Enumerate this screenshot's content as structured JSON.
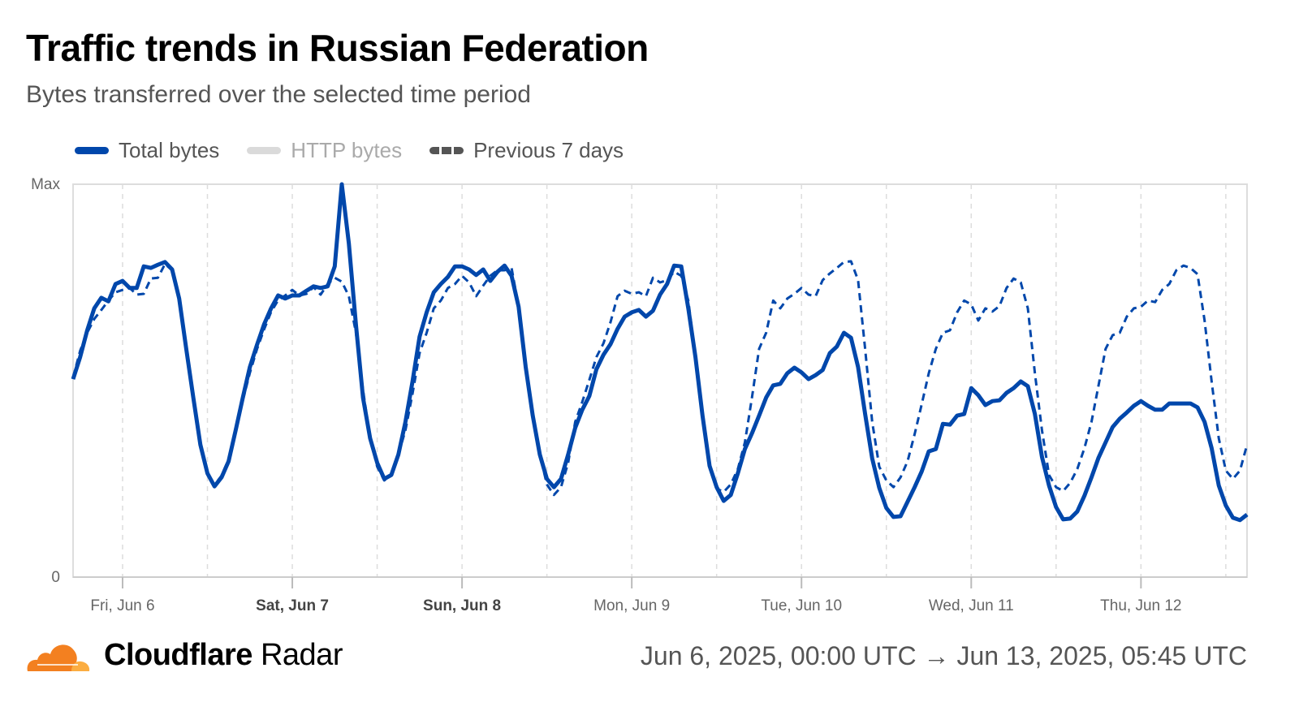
{
  "header": {
    "title": "Traffic trends in Russian Federation",
    "subtitle": "Bytes transferred over the selected time period"
  },
  "legend": [
    {
      "label": "Total bytes",
      "color": "#0047AB",
      "active": true
    },
    {
      "label": "HTTP bytes",
      "color": "#DADADA",
      "active": false
    },
    {
      "label": "Previous 7 days",
      "color": "#555555",
      "active": true
    }
  ],
  "footer": {
    "brand_bold": "Cloudflare",
    "brand_light": "Radar",
    "date_range": "Jun 6, 2025, 00:00 UTC → Jun 13, 2025, 05:45 UTC"
  },
  "chart_data": {
    "type": "line",
    "title": "Traffic trends in Russian Federation",
    "xlabel": "",
    "ylabel": "",
    "x_unit": "hours from chart start",
    "xlim": [
      0,
      166
    ],
    "ylim": [
      0,
      100
    ],
    "y_ticks": [
      {
        "value": 0,
        "label": "0"
      },
      {
        "value": 100,
        "label": "Max"
      }
    ],
    "x_ticks": [
      {
        "hour": 7,
        "label": "Fri, Jun 6",
        "bold": false
      },
      {
        "hour": 31,
        "label": "Sat, Jun 7",
        "bold": true
      },
      {
        "hour": 55,
        "label": "Sun, Jun 8",
        "bold": true
      },
      {
        "hour": 79,
        "label": "Mon, Jun 9",
        "bold": false
      },
      {
        "hour": 103,
        "label": "Tue, Jun 10",
        "bold": false
      },
      {
        "hour": 127,
        "label": "Wed, Jun 11",
        "bold": false
      },
      {
        "hour": 151,
        "label": "Thu, Jun 12",
        "bold": false
      }
    ],
    "grid": true,
    "legend_position": "top-left",
    "series": [
      {
        "name": "Total bytes",
        "style": "solid",
        "color": "#0047AB",
        "values": [
          50.4,
          56.0,
          62.8,
          68.4,
          71.1,
          70.2,
          74.6,
          75.4,
          73.6,
          73.6,
          79.1,
          78.7,
          79.5,
          80.2,
          78.3,
          70.9,
          58.1,
          45.7,
          33.7,
          26.4,
          23.1,
          25.4,
          29.5,
          37.4,
          45.7,
          53.5,
          59.1,
          64.3,
          68.4,
          71.7,
          70.9,
          71.7,
          71.7,
          72.9,
          74.0,
          73.6,
          74.0,
          79.1,
          100,
          84.9,
          64.3,
          45.7,
          35.3,
          29.1,
          25.0,
          26.0,
          31.2,
          39.5,
          49.8,
          61.2,
          67.4,
          72.5,
          74.6,
          76.4,
          79.1,
          79.1,
          78.3,
          76.9,
          78.3,
          75.4,
          77.7,
          79.3,
          76.7,
          68.8,
          53.5,
          41.1,
          31.2,
          25.0,
          22.9,
          25.0,
          31.2,
          38.0,
          42.6,
          46.1,
          52.9,
          56.6,
          59.3,
          63.2,
          66.3,
          67.4,
          68.0,
          66.3,
          67.8,
          71.9,
          74.6,
          79.3,
          79.1,
          68.4,
          56.0,
          41.1,
          28.3,
          22.9,
          19.4,
          20.9,
          26.4,
          32.6,
          36.6,
          41.1,
          45.7,
          48.8,
          49.2,
          51.9,
          53.3,
          52.1,
          50.4,
          51.4,
          52.7,
          57.0,
          58.7,
          62.2,
          60.9,
          53.5,
          41.5,
          30.2,
          22.7,
          17.6,
          15.3,
          15.5,
          19.2,
          22.9,
          26.9,
          32.0,
          32.6,
          39.0,
          38.8,
          41.1,
          41.5,
          48.1,
          46.3,
          43.8,
          44.8,
          45.0,
          46.9,
          48.1,
          49.8,
          48.6,
          41.5,
          30.6,
          23.3,
          17.8,
          14.7,
          14.9,
          16.7,
          20.7,
          25.4,
          30.4,
          34.3,
          38.2,
          40.3,
          41.9,
          43.6,
          44.8,
          43.6,
          42.6,
          42.6,
          44.2,
          44.2,
          44.2,
          44.2,
          43.2,
          39.5,
          32.8,
          23.3,
          18.2,
          15.1,
          14.5,
          15.9
        ]
      },
      {
        "name": "Previous 7 days",
        "style": "dashed",
        "color": "#0047AB",
        "values": [
          50.8,
          57.6,
          62.2,
          65.7,
          68.0,
          70.4,
          72.5,
          73.1,
          73.6,
          71.9,
          72.1,
          76.0,
          76.2,
          79.7,
          78.1,
          70.9,
          58.1,
          45.7,
          33.7,
          26.4,
          23.5,
          25.8,
          30.0,
          37.0,
          45.0,
          52.0,
          58.0,
          63.0,
          67.5,
          70.5,
          71.7,
          73.1,
          71.7,
          72.1,
          73.8,
          71.9,
          74.6,
          76.2,
          75.2,
          71.5,
          62.2,
          47.7,
          35.3,
          28.1,
          24.6,
          26.0,
          31.2,
          37.4,
          46.7,
          57.0,
          62.2,
          68.4,
          70.4,
          73.6,
          74.6,
          76.7,
          75.0,
          71.5,
          74.2,
          76.7,
          78.1,
          78.1,
          78.7,
          68.8,
          53.5,
          41.1,
          31.2,
          23.6,
          20.9,
          22.9,
          29.1,
          39.5,
          44.6,
          50.2,
          56.0,
          59.5,
          64.9,
          71.5,
          72.9,
          72.1,
          72.5,
          71.5,
          76.2,
          75.0,
          75.6,
          77.7,
          76.7,
          70.4,
          56.0,
          41.1,
          28.3,
          22.5,
          21.7,
          23.6,
          27.5,
          34.3,
          45.7,
          58.1,
          62.2,
          70.4,
          68.4,
          70.9,
          72.1,
          73.6,
          71.9,
          71.5,
          75.6,
          77.3,
          78.7,
          80.2,
          80.4,
          75.6,
          58.1,
          39.5,
          28.1,
          24.6,
          22.9,
          25.4,
          29.5,
          36.4,
          44.0,
          51.9,
          58.1,
          62.2,
          62.8,
          67.4,
          70.4,
          69.4,
          65.3,
          68.4,
          67.6,
          69.0,
          73.6,
          76.0,
          75.0,
          68.4,
          51.9,
          37.4,
          26.0,
          22.9,
          21.9,
          24.0,
          27.5,
          32.8,
          39.5,
          48.8,
          58.1,
          61.6,
          62.2,
          66.3,
          68.4,
          68.8,
          70.4,
          70.0,
          73.1,
          74.6,
          78.1,
          79.3,
          78.7,
          77.1,
          65.3,
          49.8,
          35.3,
          27.1,
          25.0,
          27.1,
          33.7
        ]
      }
    ]
  }
}
